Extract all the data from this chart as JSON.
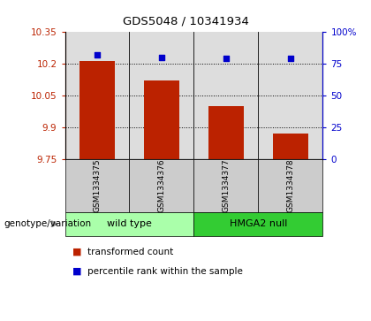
{
  "title": "GDS5048 / 10341934",
  "samples": [
    "GSM1334375",
    "GSM1334376",
    "GSM1334377",
    "GSM1334378"
  ],
  "bar_values": [
    10.215,
    10.12,
    10.0,
    9.87
  ],
  "percentile_values": [
    82,
    80,
    79,
    79
  ],
  "ylim_left": [
    9.75,
    10.35
  ],
  "ylim_right": [
    0,
    100
  ],
  "yticks_left": [
    9.75,
    9.9,
    10.05,
    10.2,
    10.35
  ],
  "ytick_labels_left": [
    "9.75",
    "9.9",
    "10.05",
    "10.2",
    "10.35"
  ],
  "yticks_right": [
    0,
    25,
    50,
    75,
    100
  ],
  "ytick_labels_right": [
    "0",
    "25",
    "50",
    "75",
    "100%"
  ],
  "hlines": [
    9.9,
    10.05,
    10.2
  ],
  "bar_color": "#bb2200",
  "dot_color": "#0000cc",
  "groups": [
    {
      "label": "wild type",
      "samples": [
        0,
        1
      ],
      "color": "#aaffaa"
    },
    {
      "label": "HMGA2 null",
      "samples": [
        2,
        3
      ],
      "color": "#33cc33"
    }
  ],
  "group_row_label": "genotype/variation",
  "legend_bar_label": "transformed count",
  "legend_dot_label": "percentile rank within the sample",
  "plot_bg": "#dddddd",
  "sample_box_color": "#cccccc",
  "bar_width": 0.55
}
